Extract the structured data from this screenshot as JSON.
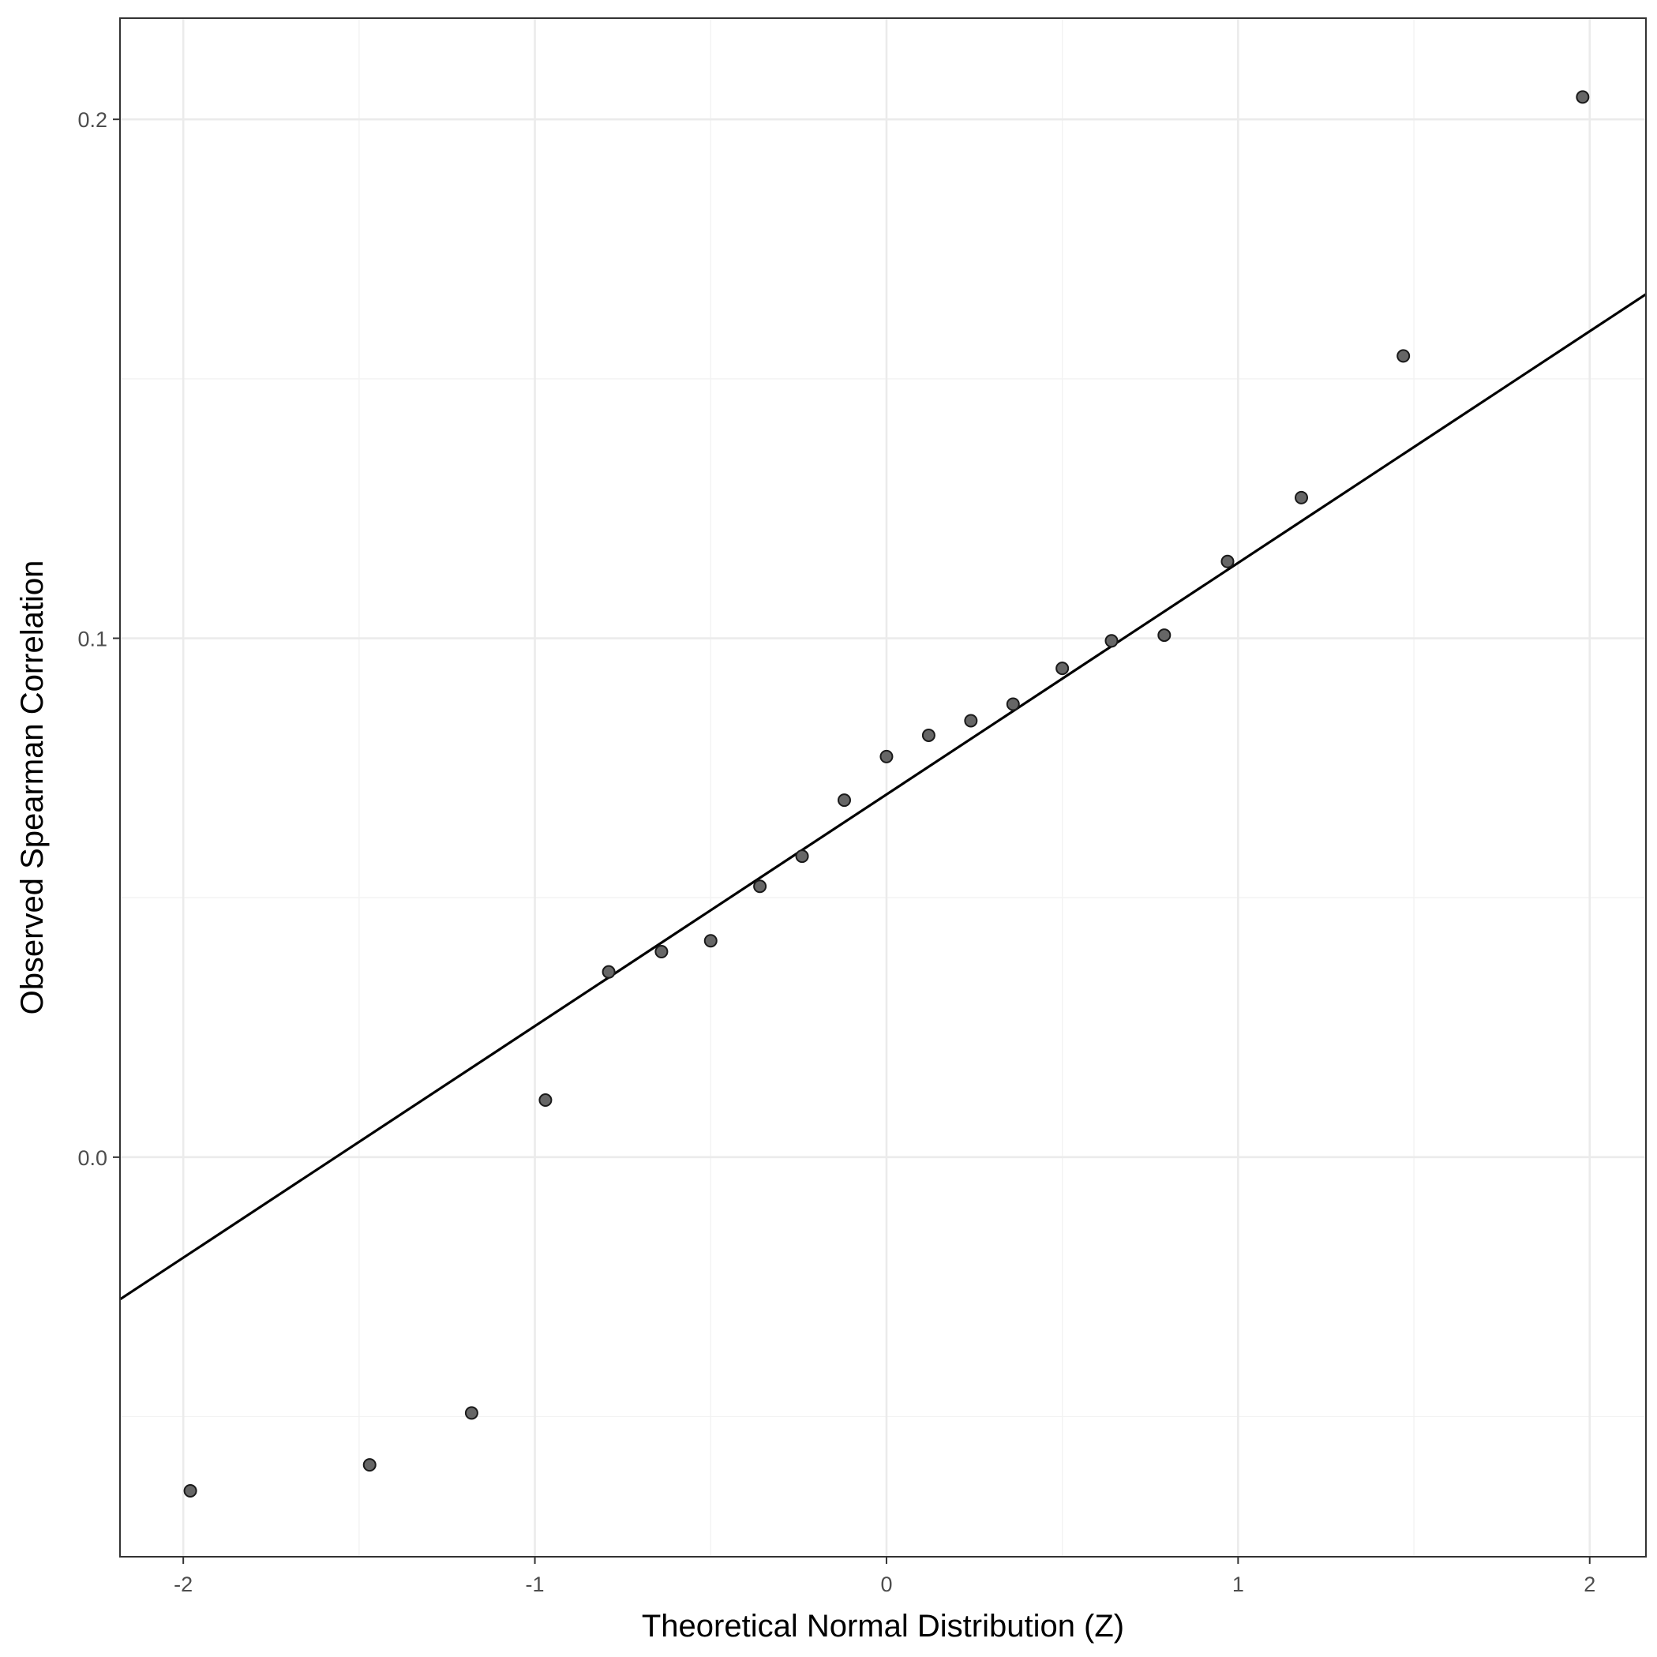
{
  "chart_data": {
    "type": "scatter",
    "title": "",
    "xlabel": "Theoretical Normal Distribution (Z)",
    "ylabel": "Observed Spearman Correlation",
    "xlim": [
      -2.18,
      2.16
    ],
    "ylim": [
      -0.077,
      0.2195
    ],
    "x_ticks": [
      -2,
      -1,
      0,
      1,
      2
    ],
    "x_tick_labels": [
      "-2",
      "-1",
      "0",
      "1",
      "2"
    ],
    "y_ticks": [
      0.0,
      0.1,
      0.2
    ],
    "y_tick_labels": [
      "0.0",
      "0.1",
      "0.2"
    ],
    "grid": true,
    "legend": "none",
    "colors": {
      "point_fill": "#666666",
      "point_stroke": "#1a1a1a",
      "line": "#000000",
      "grid": "#ebebeb"
    },
    "points": {
      "x": [
        -1.98,
        -1.47,
        -1.18,
        -0.97,
        -0.79,
        -0.64,
        -0.5,
        -0.36,
        -0.24,
        -0.12,
        0.0,
        0.12,
        0.24,
        0.36,
        0.5,
        0.64,
        0.79,
        0.97,
        1.18,
        1.47,
        1.98
      ],
      "y": [
        -0.0643,
        -0.0593,
        -0.0493,
        0.011,
        0.0357,
        0.0396,
        0.0417,
        0.0522,
        0.058,
        0.0688,
        0.0772,
        0.0813,
        0.0841,
        0.0873,
        0.0942,
        0.0995,
        0.1006,
        0.1148,
        0.1271,
        0.1544,
        0.2043
      ]
    },
    "reference_line": {
      "x": [
        -2.18,
        2.16
      ],
      "y": [
        -0.0274,
        0.1663
      ]
    }
  }
}
